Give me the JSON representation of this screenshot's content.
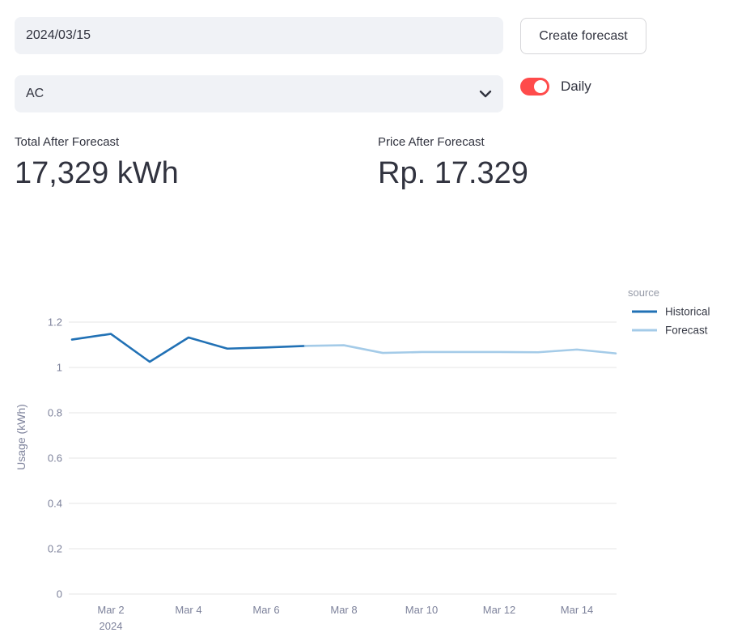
{
  "colors": {
    "primary": "#FF4B4B",
    "input_bg": "#F0F2F6",
    "text": "#31333F",
    "historical_line": "#2171b5",
    "forecast_line": "#a4cbe8",
    "axis_text": "#7d829b",
    "grid": "#e6e6e6"
  },
  "toolbar": {
    "date_input_value": "2024/03/15",
    "create_forecast_label": "Create forecast",
    "device_select_value": "AC",
    "toggle_label": "Daily",
    "toggle_on": true
  },
  "metrics": [
    {
      "label": "Total After Forecast",
      "value": "17,329 kWh"
    },
    {
      "label": "Price After Forecast",
      "value": "Rp. 17.329"
    }
  ],
  "chart_data": {
    "type": "line",
    "title": "",
    "xlabel": "",
    "ylabel": "Usage (kWh)",
    "ylim": [
      0,
      1.2
    ],
    "grid": true,
    "legend_position": "top-right",
    "legend_title": "source",
    "y_ticks": [
      {
        "value": 0,
        "label": "0"
      },
      {
        "value": 0.2,
        "label": "0.2"
      },
      {
        "value": 0.4,
        "label": "0.4"
      },
      {
        "value": 0.6,
        "label": "0.6"
      },
      {
        "value": 0.8,
        "label": "0.8"
      },
      {
        "value": 1,
        "label": "1"
      },
      {
        "value": 1.2,
        "label": "1.2"
      }
    ],
    "x_ticks": [
      {
        "day": 1,
        "label": "Mar 2"
      },
      {
        "day": 3,
        "label": "Mar 4"
      },
      {
        "day": 5,
        "label": "Mar 6"
      },
      {
        "day": 7,
        "label": "Mar 8"
      },
      {
        "day": 9,
        "label": "Mar 10"
      },
      {
        "day": 11,
        "label": "Mar 12"
      },
      {
        "day": 13,
        "label": "Mar 14"
      }
    ],
    "x_year_label": "2024",
    "x_domain_days": [
      0,
      14
    ],
    "series": [
      {
        "name": "Historical",
        "color": "#2171b5",
        "x_days": [
          0,
          1,
          2,
          3,
          4,
          5,
          6
        ],
        "values": [
          1.123,
          1.148,
          1.025,
          1.132,
          1.083,
          1.088,
          1.095
        ]
      },
      {
        "name": "Forecast",
        "color": "#a4cbe8",
        "x_days": [
          6,
          7,
          8,
          9,
          10,
          11,
          12,
          13,
          14
        ],
        "values": [
          1.095,
          1.098,
          1.064,
          1.068,
          1.068,
          1.068,
          1.067,
          1.079,
          1.062
        ]
      }
    ]
  }
}
